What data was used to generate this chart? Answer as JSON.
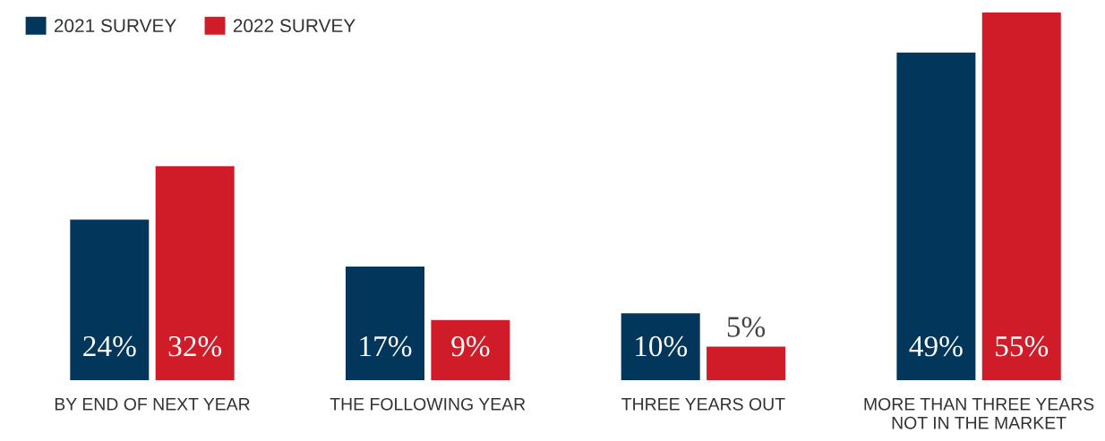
{
  "chart_data": {
    "type": "bar",
    "categories": [
      "BY END OF NEXT YEAR",
      "THE FOLLOWING YEAR",
      "THREE YEARS OUT",
      "MORE THAN THREE YEARS\nNOT IN THE MARKET"
    ],
    "series": [
      {
        "name": "2021 SURVEY",
        "color": "#02365a",
        "values": [
          24,
          17,
          10,
          49
        ],
        "value_labels": [
          "24%",
          "17%",
          "10%",
          "49%"
        ]
      },
      {
        "name": "2022 SURVEY",
        "color": "#cf1c28",
        "values": [
          32,
          9,
          5,
          55
        ],
        "value_labels": [
          "32%",
          "9%",
          "5%",
          "55%"
        ]
      }
    ],
    "legend": "top left"
  }
}
